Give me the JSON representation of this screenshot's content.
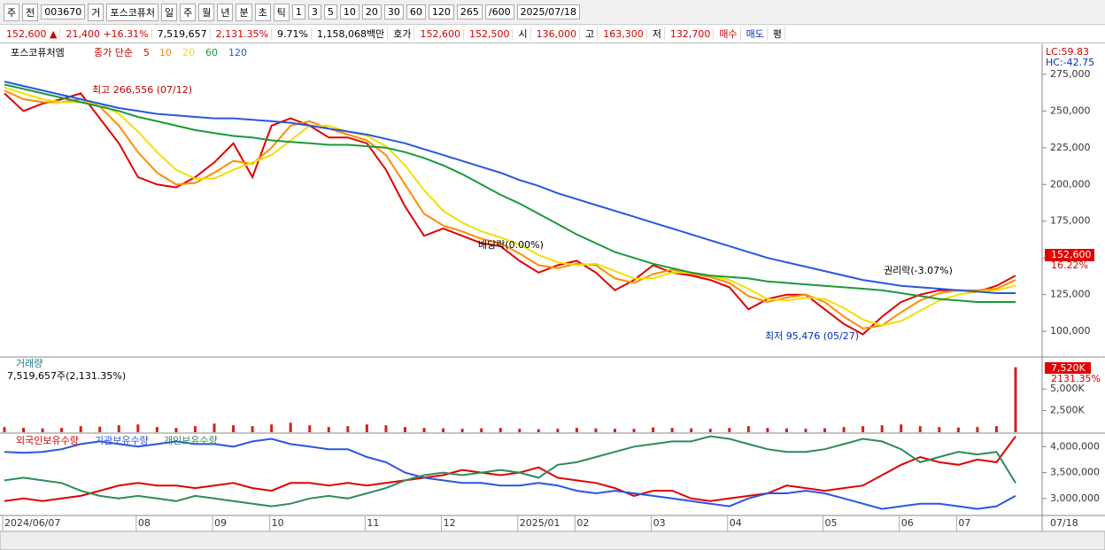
{
  "toolbar": {
    "items": [
      "주",
      "전",
      "003670",
      "거",
      "포스코퓨처",
      "일",
      "주",
      "월",
      "년",
      "분",
      "초",
      "틱",
      "1",
      "3",
      "5",
      "10",
      "20",
      "30",
      "60",
      "120",
      "265",
      "/600",
      "2025/07/18"
    ]
  },
  "info": [
    {
      "text": "152,600 ▲",
      "color": "#d00000"
    },
    {
      "text": "21,400 +16.31%",
      "color": "#d00000"
    },
    {
      "text": "7,519,657",
      "color": "#000000"
    },
    {
      "text": "2,131.35%",
      "color": "#d00000"
    },
    {
      "text": "9.71%",
      "color": "#000000"
    },
    {
      "text": "1,158,068백만",
      "color": "#000000"
    },
    {
      "text": "호가",
      "color": "#000000"
    },
    {
      "text": "152,600",
      "color": "#d00000"
    },
    {
      "text": "152,500",
      "color": "#d00000"
    },
    {
      "text": "시",
      "color": "#000000"
    },
    {
      "text": "136,000",
      "color": "#d00000"
    },
    {
      "text": "고",
      "color": "#000000"
    },
    {
      "text": "163,300",
      "color": "#d00000"
    },
    {
      "text": "저",
      "color": "#000000"
    },
    {
      "text": "132,700",
      "color": "#d00000"
    },
    {
      "text": "매수",
      "color": "#d00000"
    },
    {
      "text": "매도",
      "color": "#0030c0"
    },
    {
      "text": "평",
      "color": "#000000"
    }
  ],
  "chart_data": [
    {
      "type": "line",
      "title": "포스코퓨처엠",
      "legend_title": "종가 단순",
      "series": [
        {
          "name": "5",
          "color": "#e00000",
          "values": [
            262000,
            250000,
            255000,
            258000,
            262000,
            245000,
            228000,
            205000,
            200000,
            198000,
            205000,
            215000,
            228000,
            205000,
            240000,
            245000,
            240000,
            232000,
            232000,
            228000,
            210000,
            185000,
            165000,
            170000,
            165000,
            160000,
            158000,
            148000,
            140000,
            145000,
            148000,
            140000,
            128000,
            135000,
            145000,
            140000,
            138000,
            135000,
            130000,
            115000,
            122000,
            125000,
            125000,
            115000,
            105000,
            98000,
            110000,
            120000,
            125000,
            128000,
            128000,
            127000,
            131000,
            138000
          ]
        },
        {
          "name": "10",
          "color": "#ff8c00",
          "values": [
            264000,
            258000,
            256000,
            256000,
            258000,
            253000,
            240000,
            222000,
            208000,
            200000,
            201000,
            208000,
            216000,
            214000,
            225000,
            240000,
            243000,
            238000,
            234000,
            230000,
            220000,
            200000,
            180000,
            172000,
            168000,
            163000,
            160000,
            153000,
            145000,
            143000,
            146000,
            145000,
            136000,
            133000,
            139000,
            142000,
            139000,
            137000,
            133000,
            124000,
            120000,
            123000,
            125000,
            120000,
            110000,
            102000,
            104000,
            113000,
            121000,
            126000,
            128000,
            128000,
            129000,
            135000
          ]
        },
        {
          "name": "20",
          "color": "#f0e000",
          "values": [
            266000,
            262000,
            258000,
            256000,
            256000,
            255000,
            248000,
            236000,
            222000,
            210000,
            204000,
            204000,
            210000,
            215000,
            220000,
            230000,
            240000,
            240000,
            236000,
            233000,
            226000,
            213000,
            196000,
            182000,
            174000,
            168000,
            164000,
            159000,
            152000,
            147000,
            145000,
            146000,
            141000,
            136000,
            136000,
            140000,
            140000,
            138000,
            135000,
            129000,
            122000,
            121000,
            123000,
            122000,
            116000,
            108000,
            104000,
            107000,
            114000,
            121000,
            125000,
            127000,
            128000,
            131000
          ]
        },
        {
          "name": "60",
          "color": "#1a9a3a",
          "values": [
            268000,
            265000,
            262000,
            259000,
            256000,
            253000,
            250000,
            246000,
            243000,
            240000,
            237000,
            235000,
            233000,
            232000,
            230000,
            229000,
            228000,
            227000,
            227000,
            226000,
            225000,
            222000,
            218000,
            213000,
            207000,
            200000,
            193000,
            187000,
            180000,
            173000,
            166000,
            160000,
            154000,
            150000,
            146000,
            143000,
            140000,
            138000,
            137000,
            136000,
            134000,
            133000,
            132000,
            131000,
            130000,
            129000,
            128000,
            126000,
            124000,
            122000,
            121000,
            120000,
            120000,
            120000
          ]
        },
        {
          "name": "120",
          "color": "#2a55e0",
          "values": [
            270000,
            267000,
            264000,
            261000,
            258000,
            255000,
            252000,
            250000,
            248000,
            247000,
            246000,
            245000,
            245000,
            244000,
            243000,
            242000,
            240000,
            238000,
            236000,
            234000,
            231000,
            228000,
            224000,
            220000,
            216000,
            212000,
            208000,
            203000,
            199000,
            194000,
            190000,
            186000,
            182000,
            178000,
            174000,
            170000,
            166000,
            162000,
            158000,
            154000,
            150000,
            147000,
            144000,
            141000,
            138000,
            135000,
            133000,
            131000,
            130000,
            129000,
            128000,
            127000,
            126000,
            126000
          ]
        }
      ],
      "ylim": [
        83200,
        294200
      ],
      "yticks": [
        {
          "value": 100000,
          "label": "100,000"
        },
        {
          "value": 125000,
          "label": "125,000"
        },
        {
          "value": 150000,
          "label": "150,000"
        },
        {
          "value": 175000,
          "label": "175,000"
        },
        {
          "value": 200000,
          "label": "200,000"
        },
        {
          "value": 225000,
          "label": "225,000"
        },
        {
          "value": 250000,
          "label": "250,000"
        },
        {
          "value": 275000,
          "label": "275,000"
        }
      ],
      "annotations": [
        "최고 266,556 (07/12)",
        "배당락(0.00%)",
        "권리락(-3.07%)",
        "최저 95,476 (05/27)"
      ],
      "right_labels": [
        "LC:59.83",
        "HC:-42.75",
        "152,600",
        "16.22%"
      ]
    },
    {
      "type": "bar",
      "title": "거래량",
      "subtitle": "7,519,657주(2,131.35%)",
      "color": "#d02020",
      "values": [
        600000,
        500000,
        450000,
        500000,
        700000,
        650000,
        800000,
        900000,
        600000,
        500000,
        700000,
        1000000,
        800000,
        700000,
        900000,
        1100000,
        800000,
        600000,
        700000,
        900000,
        800000,
        600000,
        500000,
        450000,
        400000,
        450000,
        500000,
        400000,
        350000,
        400000,
        500000,
        450000,
        400000,
        400000,
        550000,
        500000,
        450000,
        400000,
        500000,
        700000,
        500000,
        450000,
        400000,
        450000,
        600000,
        700000,
        800000,
        900000,
        700000,
        600000,
        550000,
        600000,
        700000,
        7519657
      ],
      "ylim": [
        0,
        8300000
      ],
      "yticks": [
        {
          "value": 2500000,
          "label": "2,500K"
        },
        {
          "value": 5000000,
          "label": "5,000K"
        }
      ],
      "right_labels": [
        "7,520K",
        "2131.35%"
      ]
    },
    {
      "type": "line",
      "categories": [
        "2024/06/07",
        null,
        null,
        null,
        null,
        null,
        null,
        "08",
        null,
        null,
        null,
        "09",
        null,
        null,
        "10",
        null,
        null,
        null,
        null,
        "11",
        null,
        null,
        null,
        "12",
        null,
        null,
        null,
        "2025/01",
        null,
        null,
        "02",
        null,
        null,
        null,
        "03",
        null,
        null,
        null,
        "04",
        null,
        null,
        null,
        null,
        "05",
        null,
        null,
        null,
        "06",
        null,
        null,
        "07",
        null,
        null,
        null
      ],
      "end_label": "07/18",
      "series": [
        {
          "name": "외국인보유수량",
          "color": "#e00000",
          "values": [
            2950000,
            3000000,
            2950000,
            3000000,
            3050000,
            3150000,
            3250000,
            3300000,
            3250000,
            3250000,
            3200000,
            3250000,
            3300000,
            3200000,
            3150000,
            3300000,
            3300000,
            3250000,
            3300000,
            3250000,
            3300000,
            3350000,
            3400000,
            3450000,
            3550000,
            3500000,
            3450000,
            3500000,
            3600000,
            3400000,
            3350000,
            3300000,
            3200000,
            3050000,
            3150000,
            3150000,
            3000000,
            2950000,
            3000000,
            3050000,
            3100000,
            3250000,
            3200000,
            3150000,
            3200000,
            3250000,
            3450000,
            3650000,
            3800000,
            3700000,
            3650000,
            3750000,
            3700000,
            4200000
          ]
        },
        {
          "name": "기관보유수량",
          "color": "#2a55e0",
          "values": [
            3900000,
            3880000,
            3900000,
            3950000,
            4050000,
            4100000,
            4050000,
            4000000,
            4050000,
            4100000,
            4050000,
            4050000,
            4000000,
            4100000,
            4150000,
            4050000,
            4000000,
            3950000,
            3950000,
            3800000,
            3700000,
            3500000,
            3400000,
            3350000,
            3300000,
            3300000,
            3250000,
            3250000,
            3300000,
            3250000,
            3150000,
            3100000,
            3150000,
            3100000,
            3050000,
            3000000,
            2950000,
            2900000,
            2850000,
            3000000,
            3100000,
            3100000,
            3150000,
            3100000,
            3000000,
            2900000,
            2800000,
            2850000,
            2900000,
            2900000,
            2850000,
            2800000,
            2850000,
            3050000
          ]
        },
        {
          "name": "개인보유수량",
          "color": "#2e8b57",
          "values": [
            3350000,
            3400000,
            3350000,
            3300000,
            3150000,
            3050000,
            3000000,
            3050000,
            3000000,
            2950000,
            3050000,
            3000000,
            2950000,
            2900000,
            2850000,
            2900000,
            3000000,
            3050000,
            3000000,
            3100000,
            3200000,
            3350000,
            3450000,
            3500000,
            3450000,
            3500000,
            3550000,
            3500000,
            3400000,
            3650000,
            3700000,
            3800000,
            3900000,
            4000000,
            4050000,
            4100000,
            4100000,
            4200000,
            4150000,
            4050000,
            3950000,
            3900000,
            3900000,
            3950000,
            4050000,
            4150000,
            4100000,
            3950000,
            3700000,
            3800000,
            3900000,
            3850000,
            3900000,
            3300000
          ]
        }
      ],
      "ylim": [
        2690000,
        4210000
      ],
      "yticks": [
        {
          "value": 3000000,
          "label": "3,000,000"
        },
        {
          "value": 3500000,
          "label": "3,500,000"
        },
        {
          "value": 4000000,
          "label": "4,000,000"
        }
      ]
    }
  ]
}
